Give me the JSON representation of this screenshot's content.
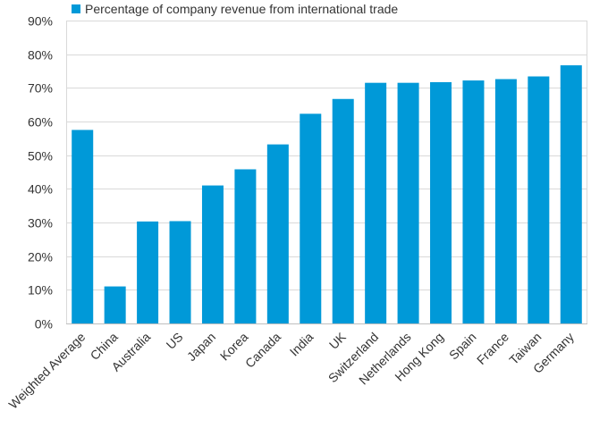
{
  "chart_data": {
    "type": "bar",
    "legend": {
      "label": "Percentage of company revenue from international trade",
      "placement": "top-left"
    },
    "categories": [
      "Weighted Average",
      "China",
      "Australia",
      "US",
      "Japan",
      "Korea",
      "Canada",
      "India",
      "UK",
      "Switzerland",
      "Netherlands",
      "Hong Kong",
      "Spain",
      "France",
      "Taiwan",
      "Germany"
    ],
    "series": [
      {
        "name": "Percentage of company revenue from international trade",
        "values": [
          57.5,
          11.0,
          30.3,
          30.4,
          41.0,
          45.8,
          53.2,
          62.3,
          66.7,
          71.5,
          71.5,
          71.7,
          72.2,
          72.6,
          73.4,
          76.7
        ]
      }
    ],
    "yticks": [
      "0%",
      "10%",
      "20%",
      "30%",
      "40%",
      "50%",
      "60%",
      "70%",
      "80%",
      "90%"
    ],
    "ylim": [
      0,
      90
    ],
    "grid": true,
    "colors": {
      "bar": "#0099d8",
      "grid": "#d9d9d9",
      "axis": "#bfbfbf"
    }
  }
}
